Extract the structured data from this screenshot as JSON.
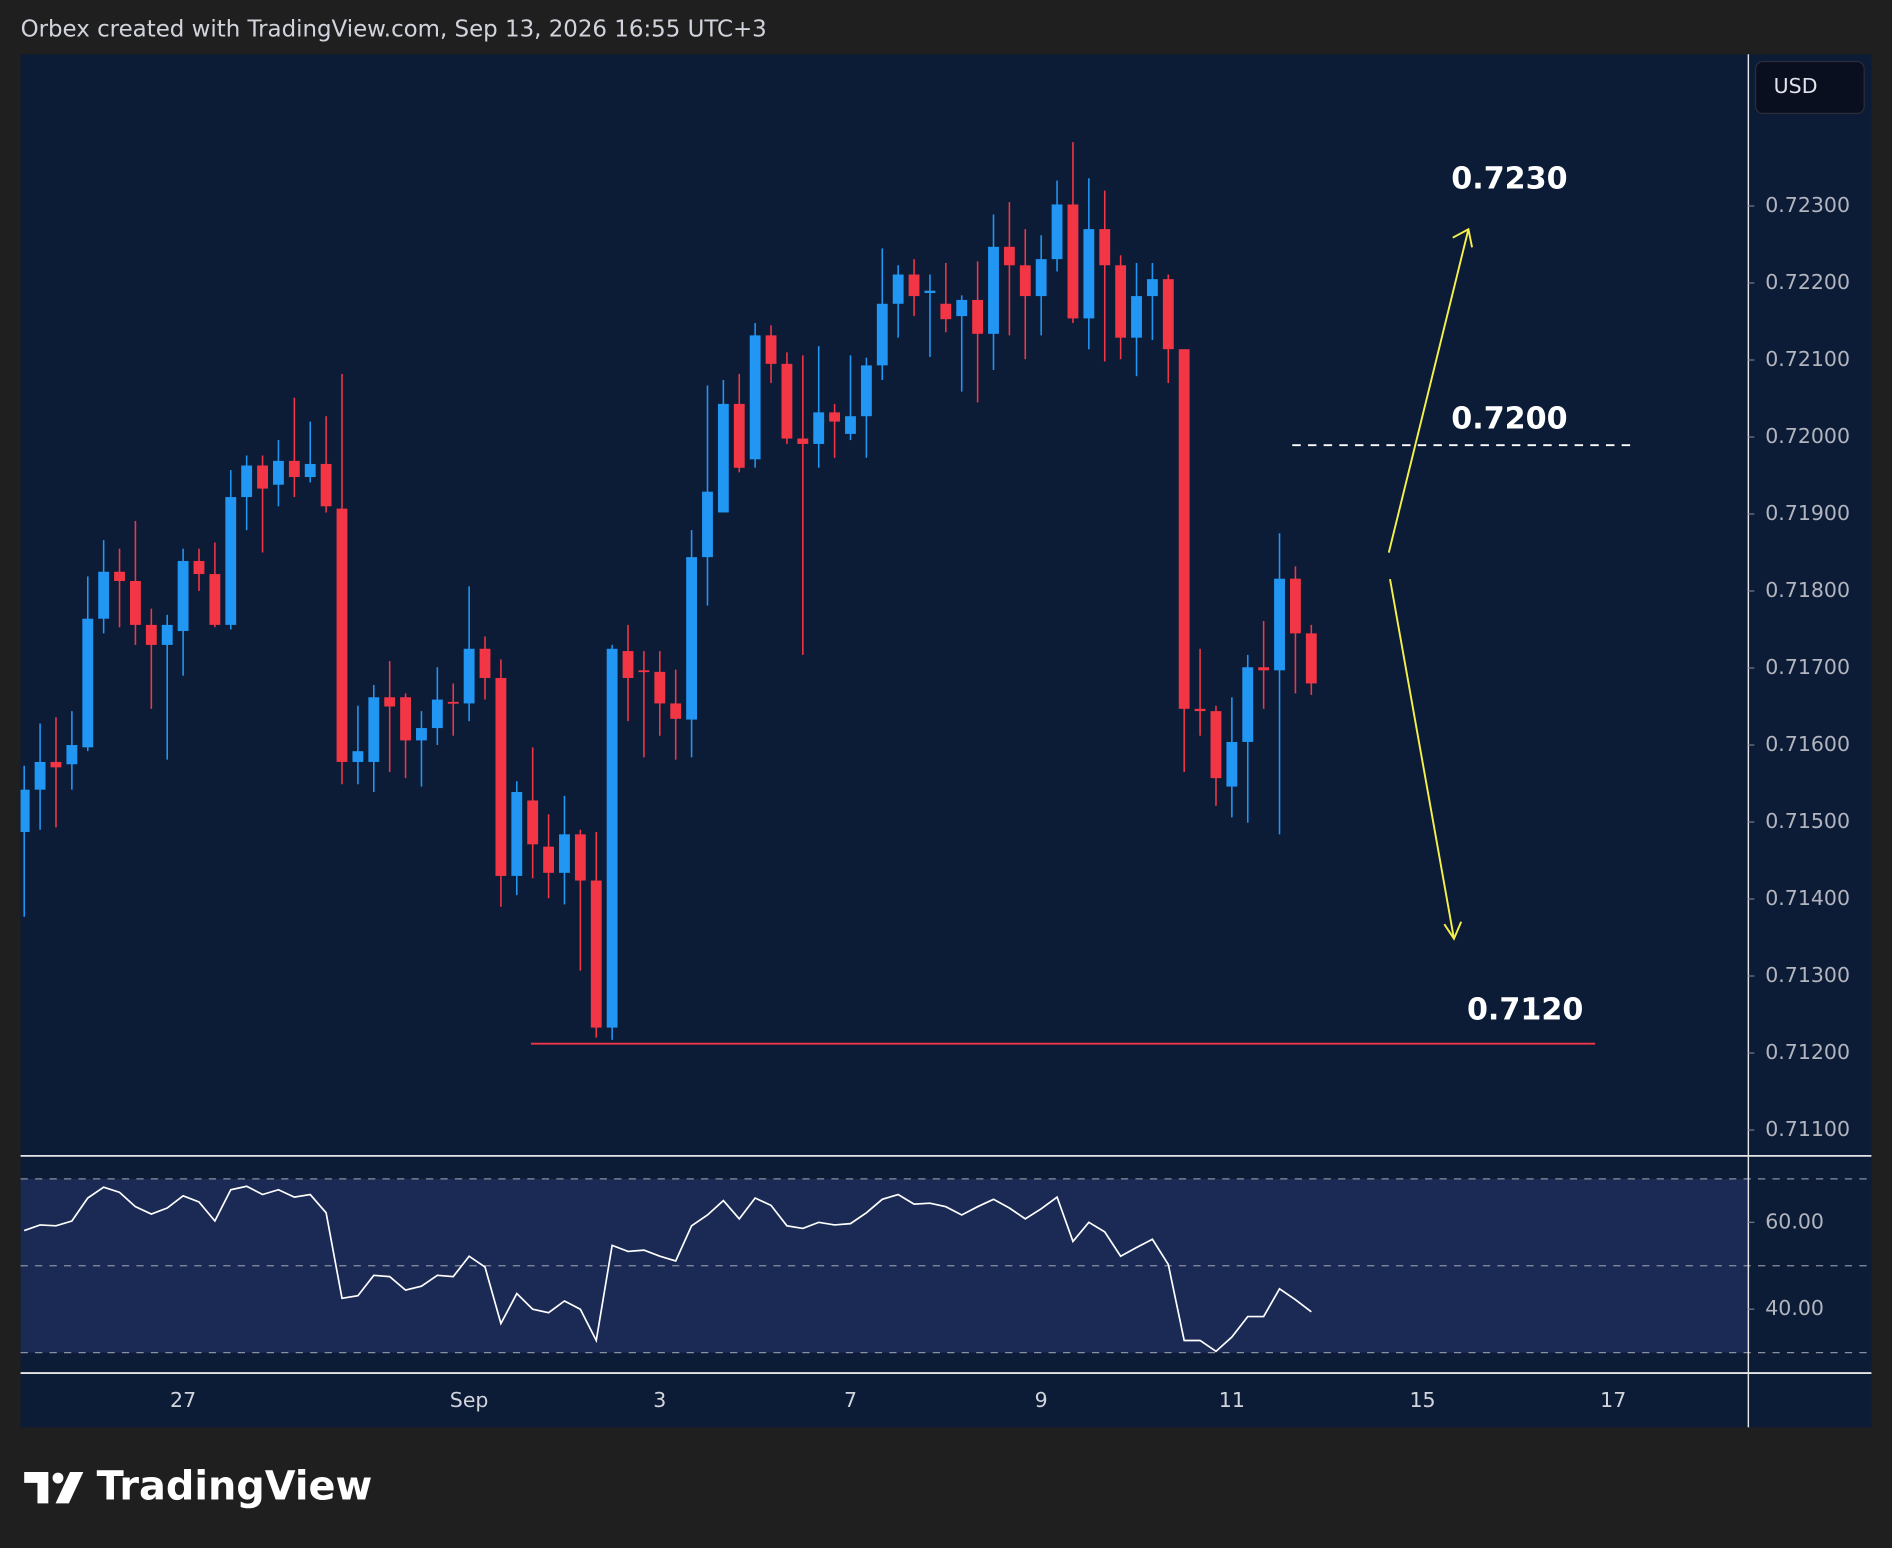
{
  "chart_data": {
    "type": "candlestick",
    "header": "Orbex created with TradingView.com, Sep 13, 2026 16:55 UTC+3",
    "currency": "USD",
    "brand": "TradingView",
    "up_color": "#2196f3",
    "down_color": "#f23645",
    "categories": [
      null,
      null,
      null,
      null,
      null,
      null,
      null,
      null,
      null,
      null,
      "27",
      null,
      null,
      null,
      null,
      null,
      null,
      null,
      null,
      null,
      null,
      null,
      null,
      null,
      null,
      null,
      null,
      null,
      "Sep",
      null,
      null,
      null,
      null,
      null,
      null,
      null,
      null,
      null,
      null,
      null,
      "3",
      null,
      null,
      null,
      null,
      null,
      null,
      null,
      null,
      null,
      null,
      null,
      "7",
      null,
      null,
      null,
      null,
      null,
      null,
      null,
      null,
      null,
      null,
      null,
      "9",
      null,
      null,
      null,
      null,
      null,
      null,
      null,
      null,
      null,
      null,
      null,
      "11",
      null,
      null,
      null,
      null,
      null
    ],
    "future_labels": [
      "15",
      "17"
    ],
    "open": [
      0.71487,
      0.71542,
      0.71578,
      0.71575,
      0.71597,
      0.71764,
      0.71825,
      0.71813,
      0.71756,
      0.7173,
      0.71748,
      0.71839,
      0.71822,
      0.71756,
      0.71922,
      0.71963,
      0.71938,
      0.71969,
      0.71948,
      0.71965,
      0.71907,
      0.71578,
      0.71578,
      0.71662,
      0.71662,
      0.71606,
      0.71622,
      0.71656,
      0.71654,
      0.71725,
      0.71687,
      0.7143,
      0.71528,
      0.71468,
      0.71434,
      0.71484,
      0.71424,
      0.71233,
      0.71722,
      0.71697,
      0.71695,
      0.71654,
      0.71633,
      0.71844,
      0.71902,
      0.72043,
      0.71971,
      0.72132,
      0.72095,
      0.71998,
      0.71991,
      0.72032,
      0.72004,
      0.72027,
      0.72093,
      0.72173,
      0.72211,
      0.72187,
      0.72173,
      0.72157,
      0.72178,
      0.72134,
      0.72247,
      0.72223,
      0.72183,
      0.72231,
      0.72302,
      0.72154,
      0.7227,
      0.72223,
      0.72129,
      0.72183,
      0.72205,
      0.72114,
      0.71647,
      0.71644,
      0.71546,
      0.71604,
      0.71701,
      0.71697,
      0.71816,
      0.71745
    ],
    "high": [
      0.71573,
      0.71628,
      0.71636,
      0.71644,
      0.71819,
      0.71866,
      0.71855,
      0.71891,
      0.71777,
      0.71769,
      0.71855,
      0.71855,
      0.71863,
      0.71957,
      0.71976,
      0.71976,
      0.71996,
      0.72051,
      0.7202,
      0.72027,
      0.72082,
      0.71651,
      0.71678,
      0.71709,
      0.71667,
      0.71644,
      0.71701,
      0.7168,
      0.71806,
      0.71741,
      0.71711,
      0.71553,
      0.71597,
      0.7151,
      0.71534,
      0.7149,
      0.71487,
      0.7173,
      0.71756,
      0.71722,
      0.71722,
      0.71698,
      0.71879,
      0.72067,
      0.72074,
      0.72082,
      0.72148,
      0.72145,
      0.7211,
      0.72106,
      0.72118,
      0.72043,
      0.72106,
      0.72103,
      0.72245,
      0.72223,
      0.72231,
      0.72211,
      0.72226,
      0.72184,
      0.72228,
      0.72289,
      0.72305,
      0.7227,
      0.72262,
      0.72333,
      0.72383,
      0.72336,
      0.7232,
      0.72236,
      0.72226,
      0.72226,
      0.72211,
      0.72114,
      0.71725,
      0.71651,
      0.71662,
      0.71717,
      0.71761,
      0.71875,
      0.71832,
      0.71756
    ],
    "low": [
      0.71377,
      0.7149,
      0.71493,
      0.71542,
      0.71592,
      0.71745,
      0.71753,
      0.7173,
      0.71647,
      0.71581,
      0.7169,
      0.718,
      0.71753,
      0.7175,
      0.71879,
      0.7185,
      0.7191,
      0.71922,
      0.71941,
      0.71902,
      0.71549,
      0.71549,
      0.71539,
      0.71565,
      0.71557,
      0.71546,
      0.716,
      0.71612,
      0.71631,
      0.71659,
      0.7139,
      0.71405,
      0.71427,
      0.71401,
      0.71393,
      0.71307,
      0.7122,
      0.71217,
      0.71631,
      0.71584,
      0.71612,
      0.71581,
      0.71584,
      0.71781,
      0.71902,
      0.71954,
      0.7196,
      0.7207,
      0.71991,
      0.71717,
      0.7196,
      0.71973,
      0.71996,
      0.71973,
      0.72074,
      0.72129,
      0.72157,
      0.72104,
      0.72136,
      0.72059,
      0.72045,
      0.72087,
      0.72132,
      0.72101,
      0.72132,
      0.72215,
      0.72148,
      0.72114,
      0.72098,
      0.72101,
      0.72079,
      0.72126,
      0.7207,
      0.71565,
      0.71612,
      0.71521,
      0.71506,
      0.71499,
      0.71647,
      0.71484,
      0.71667,
      0.71665
    ],
    "close": [
      0.71542,
      0.71578,
      0.71571,
      0.716,
      0.71764,
      0.71825,
      0.71813,
      0.71756,
      0.7173,
      0.71756,
      0.71839,
      0.71822,
      0.71756,
      0.71922,
      0.71963,
      0.71933,
      0.71969,
      0.71948,
      0.71965,
      0.7191,
      0.71578,
      0.71592,
      0.71662,
      0.7165,
      0.71606,
      0.71622,
      0.71659,
      0.71654,
      0.71725,
      0.71687,
      0.7143,
      0.71539,
      0.71471,
      0.71434,
      0.71484,
      0.71424,
      0.71233,
      0.71725,
      0.71687,
      0.71695,
      0.71654,
      0.71634,
      0.71844,
      0.71929,
      0.72043,
      0.7196,
      0.72132,
      0.72095,
      0.71998,
      0.71991,
      0.72032,
      0.7202,
      0.72027,
      0.72093,
      0.72173,
      0.72211,
      0.72183,
      0.7219,
      0.72153,
      0.72178,
      0.72134,
      0.72247,
      0.72223,
      0.72183,
      0.72231,
      0.72302,
      0.72154,
      0.7227,
      0.72223,
      0.72129,
      0.72183,
      0.72205,
      0.72114,
      0.71647,
      0.71644,
      0.71557,
      0.71604,
      0.71701,
      0.71697,
      0.71816,
      0.71745,
      0.7168
    ],
    "ylim": [
      0.71068,
      0.72497
    ],
    "yticks": [
      {
        "value": 0.723,
        "label": "0.72300"
      },
      {
        "value": 0.722,
        "label": "0.72200"
      },
      {
        "value": 0.721,
        "label": "0.72100"
      },
      {
        "value": 0.72,
        "label": "0.72000"
      },
      {
        "value": 0.719,
        "label": "0.71900"
      },
      {
        "value": 0.718,
        "label": "0.71800"
      },
      {
        "value": 0.717,
        "label": "0.71700"
      },
      {
        "value": 0.716,
        "label": "0.71600"
      },
      {
        "value": 0.715,
        "label": "0.71500"
      },
      {
        "value": 0.714,
        "label": "0.71400"
      },
      {
        "value": 0.713,
        "label": "0.71300"
      },
      {
        "value": 0.712,
        "label": "0.71200"
      },
      {
        "value": 0.711,
        "label": "0.71100"
      }
    ],
    "annotations": [
      "0.7230",
      "0.7200",
      "0.7120"
    ],
    "rsi": {
      "color": "#ffffff",
      "ylim": [
        25.3,
        75.3
      ],
      "yticks": [
        {
          "value": 60,
          "label": "60.00"
        },
        {
          "value": 40,
          "label": "40.00"
        }
      ],
      "levels": [
        70,
        50,
        30
      ],
      "values": [
        58.1,
        59.4,
        59.2,
        60.3,
        65.6,
        68.1,
        66.9,
        63.6,
        61.9,
        63.3,
        66.1,
        64.7,
        60.3,
        67.5,
        68.3,
        66.4,
        67.5,
        65.8,
        66.4,
        62.2,
        42.5,
        43.1,
        47.8,
        47.5,
        44.4,
        45.3,
        47.8,
        47.5,
        52.2,
        49.7,
        36.7,
        43.6,
        40.0,
        39.2,
        41.9,
        40.0,
        32.8,
        54.7,
        53.3,
        53.6,
        52.2,
        51.1,
        59.2,
        61.7,
        65.0,
        60.8,
        65.6,
        63.9,
        59.2,
        58.6,
        60.0,
        59.4,
        59.7,
        62.2,
        65.3,
        66.4,
        64.2,
        64.4,
        63.6,
        61.7,
        63.6,
        65.3,
        63.3,
        60.8,
        63.1,
        65.8,
        55.6,
        60.0,
        57.8,
        52.2,
        54.2,
        56.1,
        50.3,
        32.8,
        32.8,
        30.3,
        33.6,
        38.3,
        38.3,
        44.7,
        42.2,
        39.4
      ]
    }
  }
}
